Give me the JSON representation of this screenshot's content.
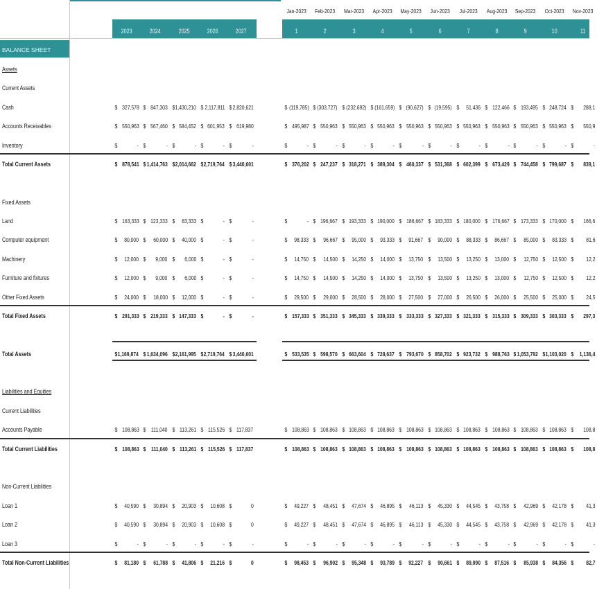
{
  "sheet_title": "BALANCE SHEET",
  "annual_headers": [
    "2023",
    "2024",
    "2025",
    "2026",
    "2027"
  ],
  "month_names": [
    "Jan-2023",
    "Feb-2023",
    "Mar-2023",
    "Apr-2023",
    "May-2023",
    "Jun-2023",
    "Jul-2023",
    "Aug-2023",
    "Sep-2023",
    "Oct-2023",
    "Nov-2023"
  ],
  "month_numbers": [
    "1",
    "2",
    "3",
    "4",
    "5",
    "6",
    "7",
    "8",
    "9",
    "10",
    "11"
  ],
  "currency_symbol": "$",
  "colors": {
    "header_band": "#2e9196"
  },
  "rows": [
    {
      "label": "Assets",
      "type": "section"
    },
    {
      "label": "Current Assets",
      "type": "subsection"
    },
    {
      "label": "Cash",
      "type": "item",
      "annual": [
        "327,578",
        "847,303",
        "1,430,210",
        "2,117,811",
        "2,820,621"
      ],
      "monthly": [
        "(119,785)",
        "(303,727)",
        "(232,692)",
        "(161,659)",
        "(90,627)",
        "(19,595)",
        "51,436",
        "122,466",
        "193,495",
        "248,724",
        "288,1"
      ]
    },
    {
      "label": "Accounts Receivables",
      "type": "item",
      "annual": [
        "550,963",
        "567,460",
        "584,452",
        "601,953",
        "619,980"
      ],
      "monthly": [
        "495,987",
        "550,963",
        "550,963",
        "550,963",
        "550,963",
        "550,963",
        "550,963",
        "550,963",
        "550,963",
        "550,963",
        "550,9"
      ]
    },
    {
      "label": "Inventory",
      "type": "item",
      "annual": [
        "-",
        "-",
        "-",
        "-",
        "-"
      ],
      "monthly": [
        "-",
        "-",
        "-",
        "-",
        "-",
        "-",
        "-",
        "-",
        "-",
        "-",
        "-"
      ]
    },
    {
      "label": "Total Current Assets",
      "type": "total",
      "annual": [
        "878,541",
        "1,414,763",
        "2,014,662",
        "2,719,764",
        "3,440,601"
      ],
      "monthly": [
        "376,202",
        "247,237",
        "318,271",
        "389,304",
        "460,337",
        "531,368",
        "602,399",
        "673,429",
        "744,458",
        "799,687",
        "839,1"
      ]
    },
    {
      "type": "blank"
    },
    {
      "label": "Fixed Assets",
      "type": "subsection"
    },
    {
      "label": "Land",
      "type": "item",
      "annual": [
        "163,333",
        "123,333",
        "83,333",
        "-",
        "-"
      ],
      "monthly": [
        "-",
        "196,667",
        "193,333",
        "190,000",
        "186,667",
        "183,333",
        "180,000",
        "176,667",
        "173,333",
        "170,000",
        "166,6"
      ]
    },
    {
      "label": "Computer equipment",
      "type": "item",
      "annual": [
        "80,000",
        "60,000",
        "40,000",
        "-",
        "-"
      ],
      "monthly": [
        "98,333",
        "96,667",
        "95,000",
        "93,333",
        "91,667",
        "90,000",
        "88,333",
        "86,667",
        "85,000",
        "83,333",
        "81,6"
      ]
    },
    {
      "label": "Machinery",
      "type": "item",
      "annual": [
        "12,000",
        "9,000",
        "6,000",
        "-",
        "-"
      ],
      "monthly": [
        "14,750",
        "14,500",
        "14,250",
        "14,000",
        "13,750",
        "13,500",
        "13,250",
        "13,000",
        "12,750",
        "12,500",
        "12,2"
      ]
    },
    {
      "label": "Furniture and fixtures",
      "type": "item",
      "annual": [
        "12,000",
        "9,000",
        "6,000",
        "-",
        "-"
      ],
      "monthly": [
        "14,750",
        "14,500",
        "14,250",
        "14,000",
        "13,750",
        "13,500",
        "13,250",
        "13,000",
        "12,750",
        "12,500",
        "12,2"
      ]
    },
    {
      "label": "Other Fixed Assets",
      "type": "item",
      "annual": [
        "24,000",
        "18,000",
        "12,000",
        "-",
        "-"
      ],
      "monthly": [
        "29,500",
        "29,000",
        "28,500",
        "28,000",
        "27,500",
        "27,000",
        "26,500",
        "26,000",
        "25,500",
        "25,000",
        "24,5"
      ]
    },
    {
      "label": "Total Fixed Assets",
      "type": "total",
      "annual": [
        "291,333",
        "219,333",
        "147,333",
        "-",
        "-"
      ],
      "monthly": [
        "157,333",
        "351,333",
        "345,333",
        "339,333",
        "333,333",
        "327,333",
        "321,333",
        "315,333",
        "309,333",
        "303,333",
        "297,3"
      ]
    },
    {
      "type": "blank"
    },
    {
      "label": "Total Assets",
      "type": "grand",
      "annual": [
        "1,169,874",
        "1,634,096",
        "2,161,995",
        "2,719,764",
        "3,440,601"
      ],
      "monthly": [
        "533,535",
        "598,570",
        "663,604",
        "728,637",
        "793,670",
        "858,702",
        "923,732",
        "988,763",
        "1,053,792",
        "1,103,020",
        "1,136,4"
      ]
    },
    {
      "type": "blank"
    },
    {
      "label": "Liabilities and Equities",
      "type": "section"
    },
    {
      "label": "Current Liabilities",
      "type": "subsection"
    },
    {
      "label": "Accounts Payable",
      "type": "item",
      "annual": [
        "108,863",
        "111,040",
        "113,261",
        "115,526",
        "117,837"
      ],
      "monthly": [
        "108,863",
        "108,863",
        "108,863",
        "108,863",
        "108,863",
        "108,863",
        "108,863",
        "108,863",
        "108,863",
        "108,863",
        "108,8"
      ]
    },
    {
      "label": "Total Current Liabilities",
      "type": "total",
      "annual": [
        "108,863",
        "111,040",
        "113,261",
        "115,526",
        "117,837"
      ],
      "monthly": [
        "108,863",
        "108,863",
        "108,863",
        "108,863",
        "108,863",
        "108,863",
        "108,863",
        "108,863",
        "108,863",
        "108,863",
        "108,8"
      ]
    },
    {
      "type": "blank"
    },
    {
      "label": "Non-Current Liabilities",
      "type": "subsection"
    },
    {
      "label": "Loan 1",
      "type": "item",
      "annual": [
        "40,590",
        "30,894",
        "20,903",
        "10,608",
        "0"
      ],
      "monthly": [
        "49,227",
        "48,451",
        "47,674",
        "46,895",
        "46,113",
        "45,330",
        "44,545",
        "43,758",
        "42,969",
        "42,178",
        "41,3"
      ]
    },
    {
      "label": "Loan 2",
      "type": "item",
      "annual": [
        "40,590",
        "30,894",
        "20,903",
        "10,608",
        "0"
      ],
      "monthly": [
        "49,227",
        "48,451",
        "47,674",
        "46,895",
        "46,113",
        "45,330",
        "44,545",
        "43,758",
        "42,969",
        "42,178",
        "41,3"
      ]
    },
    {
      "label": "Loan 3",
      "type": "item",
      "annual": [
        "-",
        "-",
        "-",
        "-",
        "-"
      ],
      "monthly": [
        "-",
        "-",
        "-",
        "-",
        "-",
        "-",
        "-",
        "-",
        "-",
        "-",
        "-"
      ]
    },
    {
      "label": "Total Non-Current Liabilities",
      "type": "total",
      "annual": [
        "81,180",
        "61,788",
        "41,806",
        "21,216",
        "0"
      ],
      "monthly": [
        "98,453",
        "96,902",
        "95,348",
        "93,789",
        "92,227",
        "90,661",
        "89,090",
        "87,516",
        "85,938",
        "84,356",
        "82,7"
      ]
    }
  ]
}
